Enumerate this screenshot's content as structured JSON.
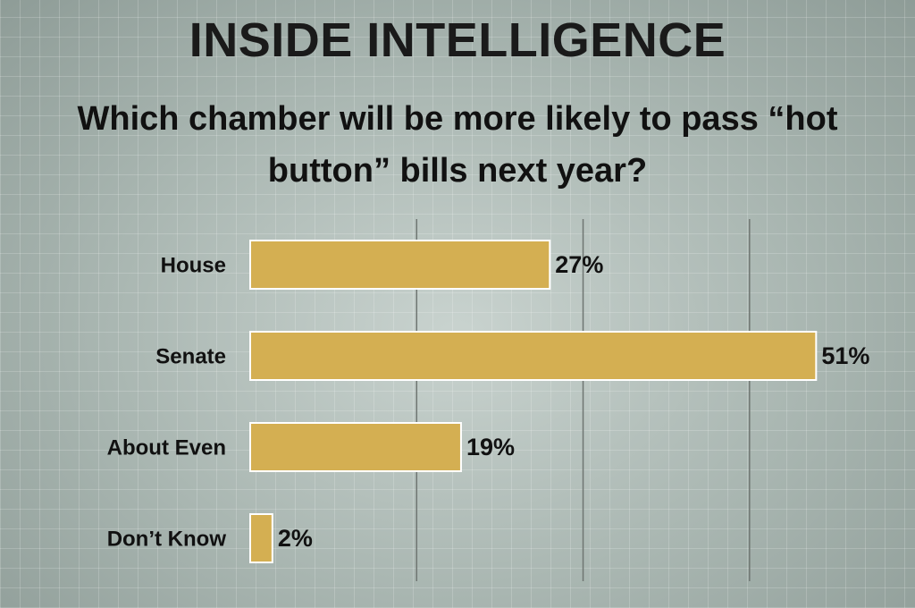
{
  "chart_data": {
    "type": "hbar",
    "title": "INSIDE INTELLIGENCE",
    "subtitle": "Which chamber will be more likely to pass “hot button” bills next year?",
    "categories": [
      "House",
      "Senate",
      "About Even",
      "Don’t Know"
    ],
    "values": [
      27,
      51,
      19,
      2
    ],
    "value_labels": [
      "27%",
      "51%",
      "19%",
      "2%"
    ],
    "color": "#d4af52",
    "xlim": [
      0,
      55
    ],
    "xticks": [
      15,
      30,
      45
    ],
    "grid": true
  }
}
